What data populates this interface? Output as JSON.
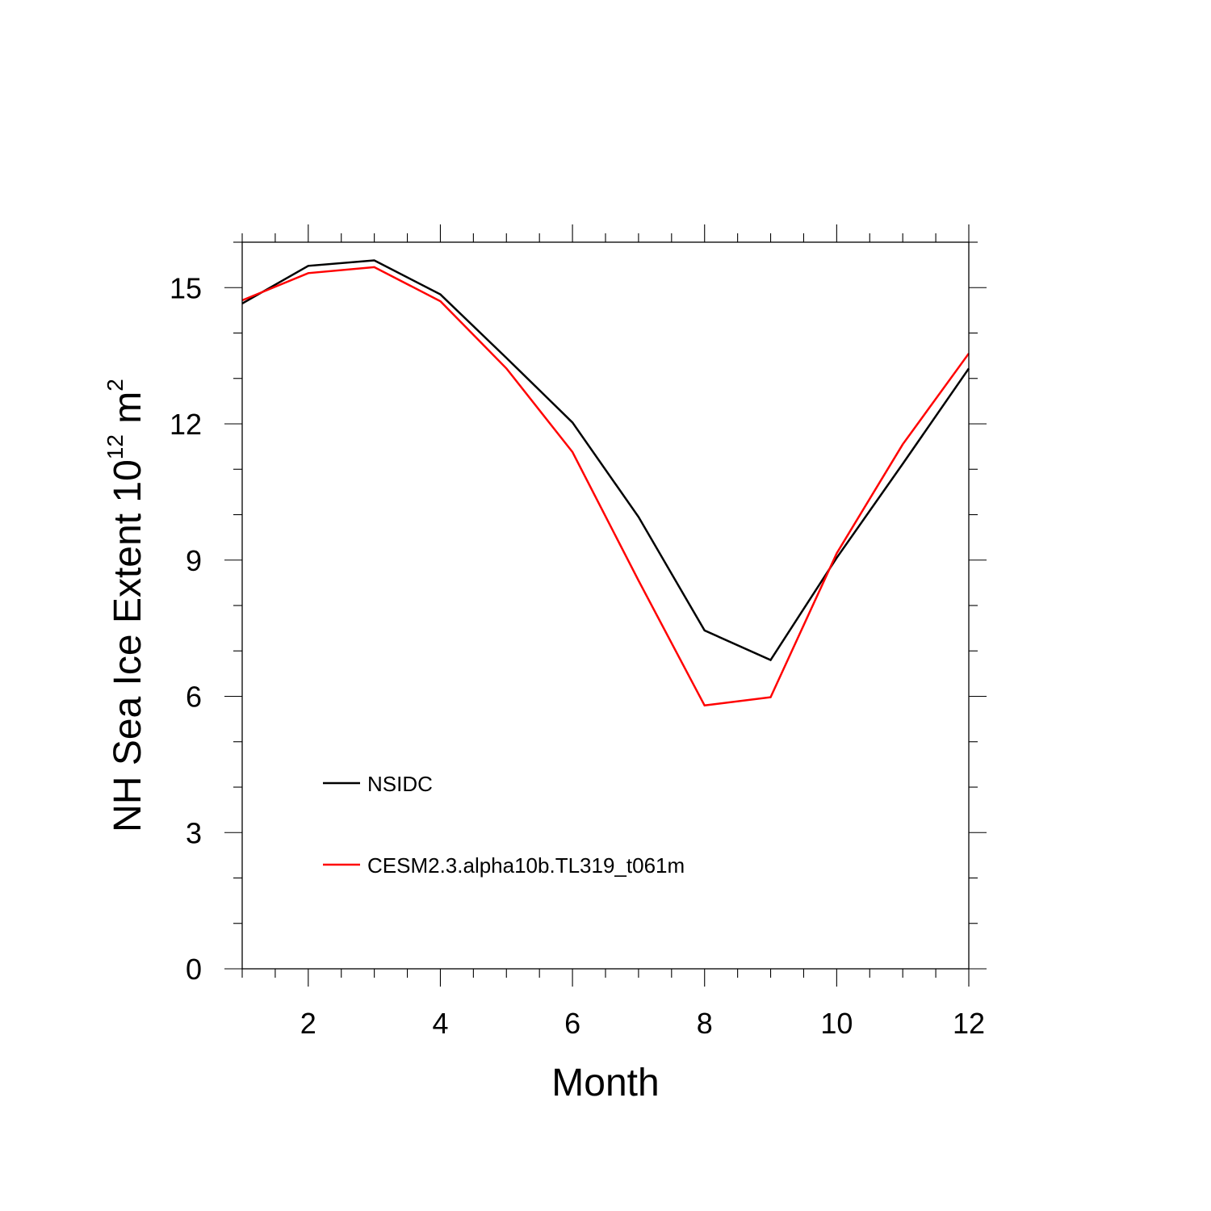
{
  "chart_data": {
    "type": "line",
    "title": "",
    "xlabel": "Month",
    "ylabel": {
      "base": "NH Sea Ice Extent 10",
      "exponent1": "12",
      "unit": " m",
      "exponent2": "2"
    },
    "xlim": [
      1,
      12
    ],
    "ylim": [
      0,
      16
    ],
    "x_ticks": [
      2,
      4,
      6,
      8,
      10,
      12
    ],
    "y_ticks": [
      0,
      3,
      6,
      9,
      12,
      15
    ],
    "x_minor_step": 0.5,
    "y_minor_step": 1,
    "grid": false,
    "legend_position": "lower-left",
    "x": [
      1,
      2,
      3,
      4,
      5,
      6,
      7,
      8,
      9,
      10,
      11,
      12
    ],
    "series": [
      {
        "name": "NSIDC",
        "color": "#000000",
        "values": [
          14.65,
          15.48,
          15.6,
          14.85,
          13.45,
          12.03,
          9.95,
          7.45,
          6.8,
          9.05,
          11.12,
          13.22
        ]
      },
      {
        "name": "CESM2.3.alpha10b.TL319_t061m",
        "color": "#ff0000",
        "values": [
          14.72,
          15.32,
          15.45,
          14.7,
          13.22,
          11.38,
          8.55,
          5.8,
          5.98,
          9.15,
          11.55,
          13.55
        ]
      }
    ]
  }
}
